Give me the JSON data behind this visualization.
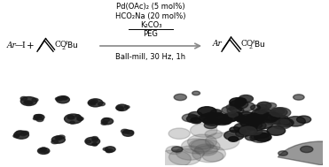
{
  "white": "#ffffff",
  "fig_width": 3.71,
  "fig_height": 1.89,
  "reaction_line1": "Pd(OAc)₂ (5 mol%)",
  "reaction_line2": "HCO₂Na (20 mol%)",
  "reaction_line3": "K₂CO₃",
  "reaction_line4": "PEG",
  "reaction_line5": "Ball-mill, 30 Hz, 1h",
  "font_size": 6.5,
  "left_tem_bg": "#c8c8c8",
  "right_tem_bg": "#b0b0b0",
  "arrow_color": "#888888",
  "blob_color_dark": "#1a1a1a",
  "blob_color_mid": "#333333"
}
